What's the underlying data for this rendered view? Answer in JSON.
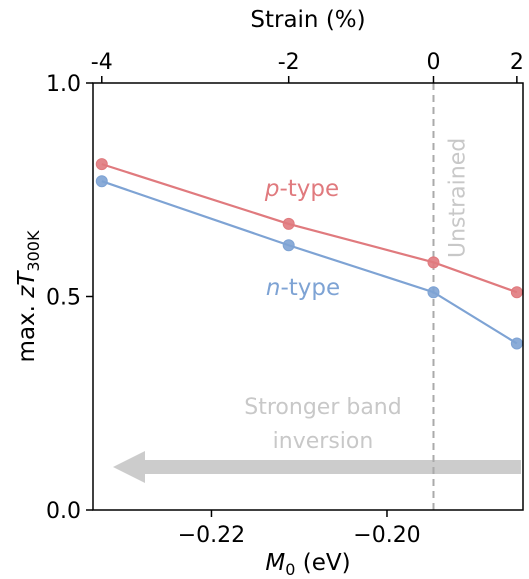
{
  "chart_data": {
    "type": "line",
    "xlabel": "M",
    "xlabel_sub": "0",
    "xlabel_unit": " (eV)",
    "ylabel": "max. zT",
    "ylabel_sub": "300K",
    "top_xlabel": "Strain (%)",
    "xlim": [
      -0.2335,
      -0.1845
    ],
    "ylim": [
      0.0,
      1.0
    ],
    "x_ticks": [
      -0.22,
      -0.2
    ],
    "x_tick_labels": [
      "−0.22",
      "−0.20"
    ],
    "y_ticks": [
      0.0,
      0.5,
      1.0
    ],
    "y_tick_labels": [
      "0.0",
      "0.5",
      "1.0"
    ],
    "top_ticks_x": [
      -0.2325,
      -0.2112,
      -0.1947,
      -0.1852
    ],
    "top_tick_labels": [
      "-4",
      "-2",
      "0",
      "2"
    ],
    "unstrained_x": -0.1947,
    "series": [
      {
        "name_italic": "p",
        "name_rest": "-type",
        "color": "#e07a7e",
        "x": [
          -0.2325,
          -0.2112,
          -0.1947,
          -0.1852
        ],
        "values": [
          0.81,
          0.67,
          0.58,
          0.51
        ]
      },
      {
        "name_italic": "n",
        "name_rest": "-type",
        "color": "#7ea3d4",
        "x": [
          -0.2325,
          -0.2112,
          -0.1947,
          -0.1852
        ],
        "values": [
          0.77,
          0.62,
          0.51,
          0.39
        ]
      }
    ],
    "annotations": {
      "unstrained": "Unstrained",
      "arrow_line1": "Stronger band",
      "arrow_line2": "inversion",
      "arrow_color": "#cccccc"
    }
  }
}
